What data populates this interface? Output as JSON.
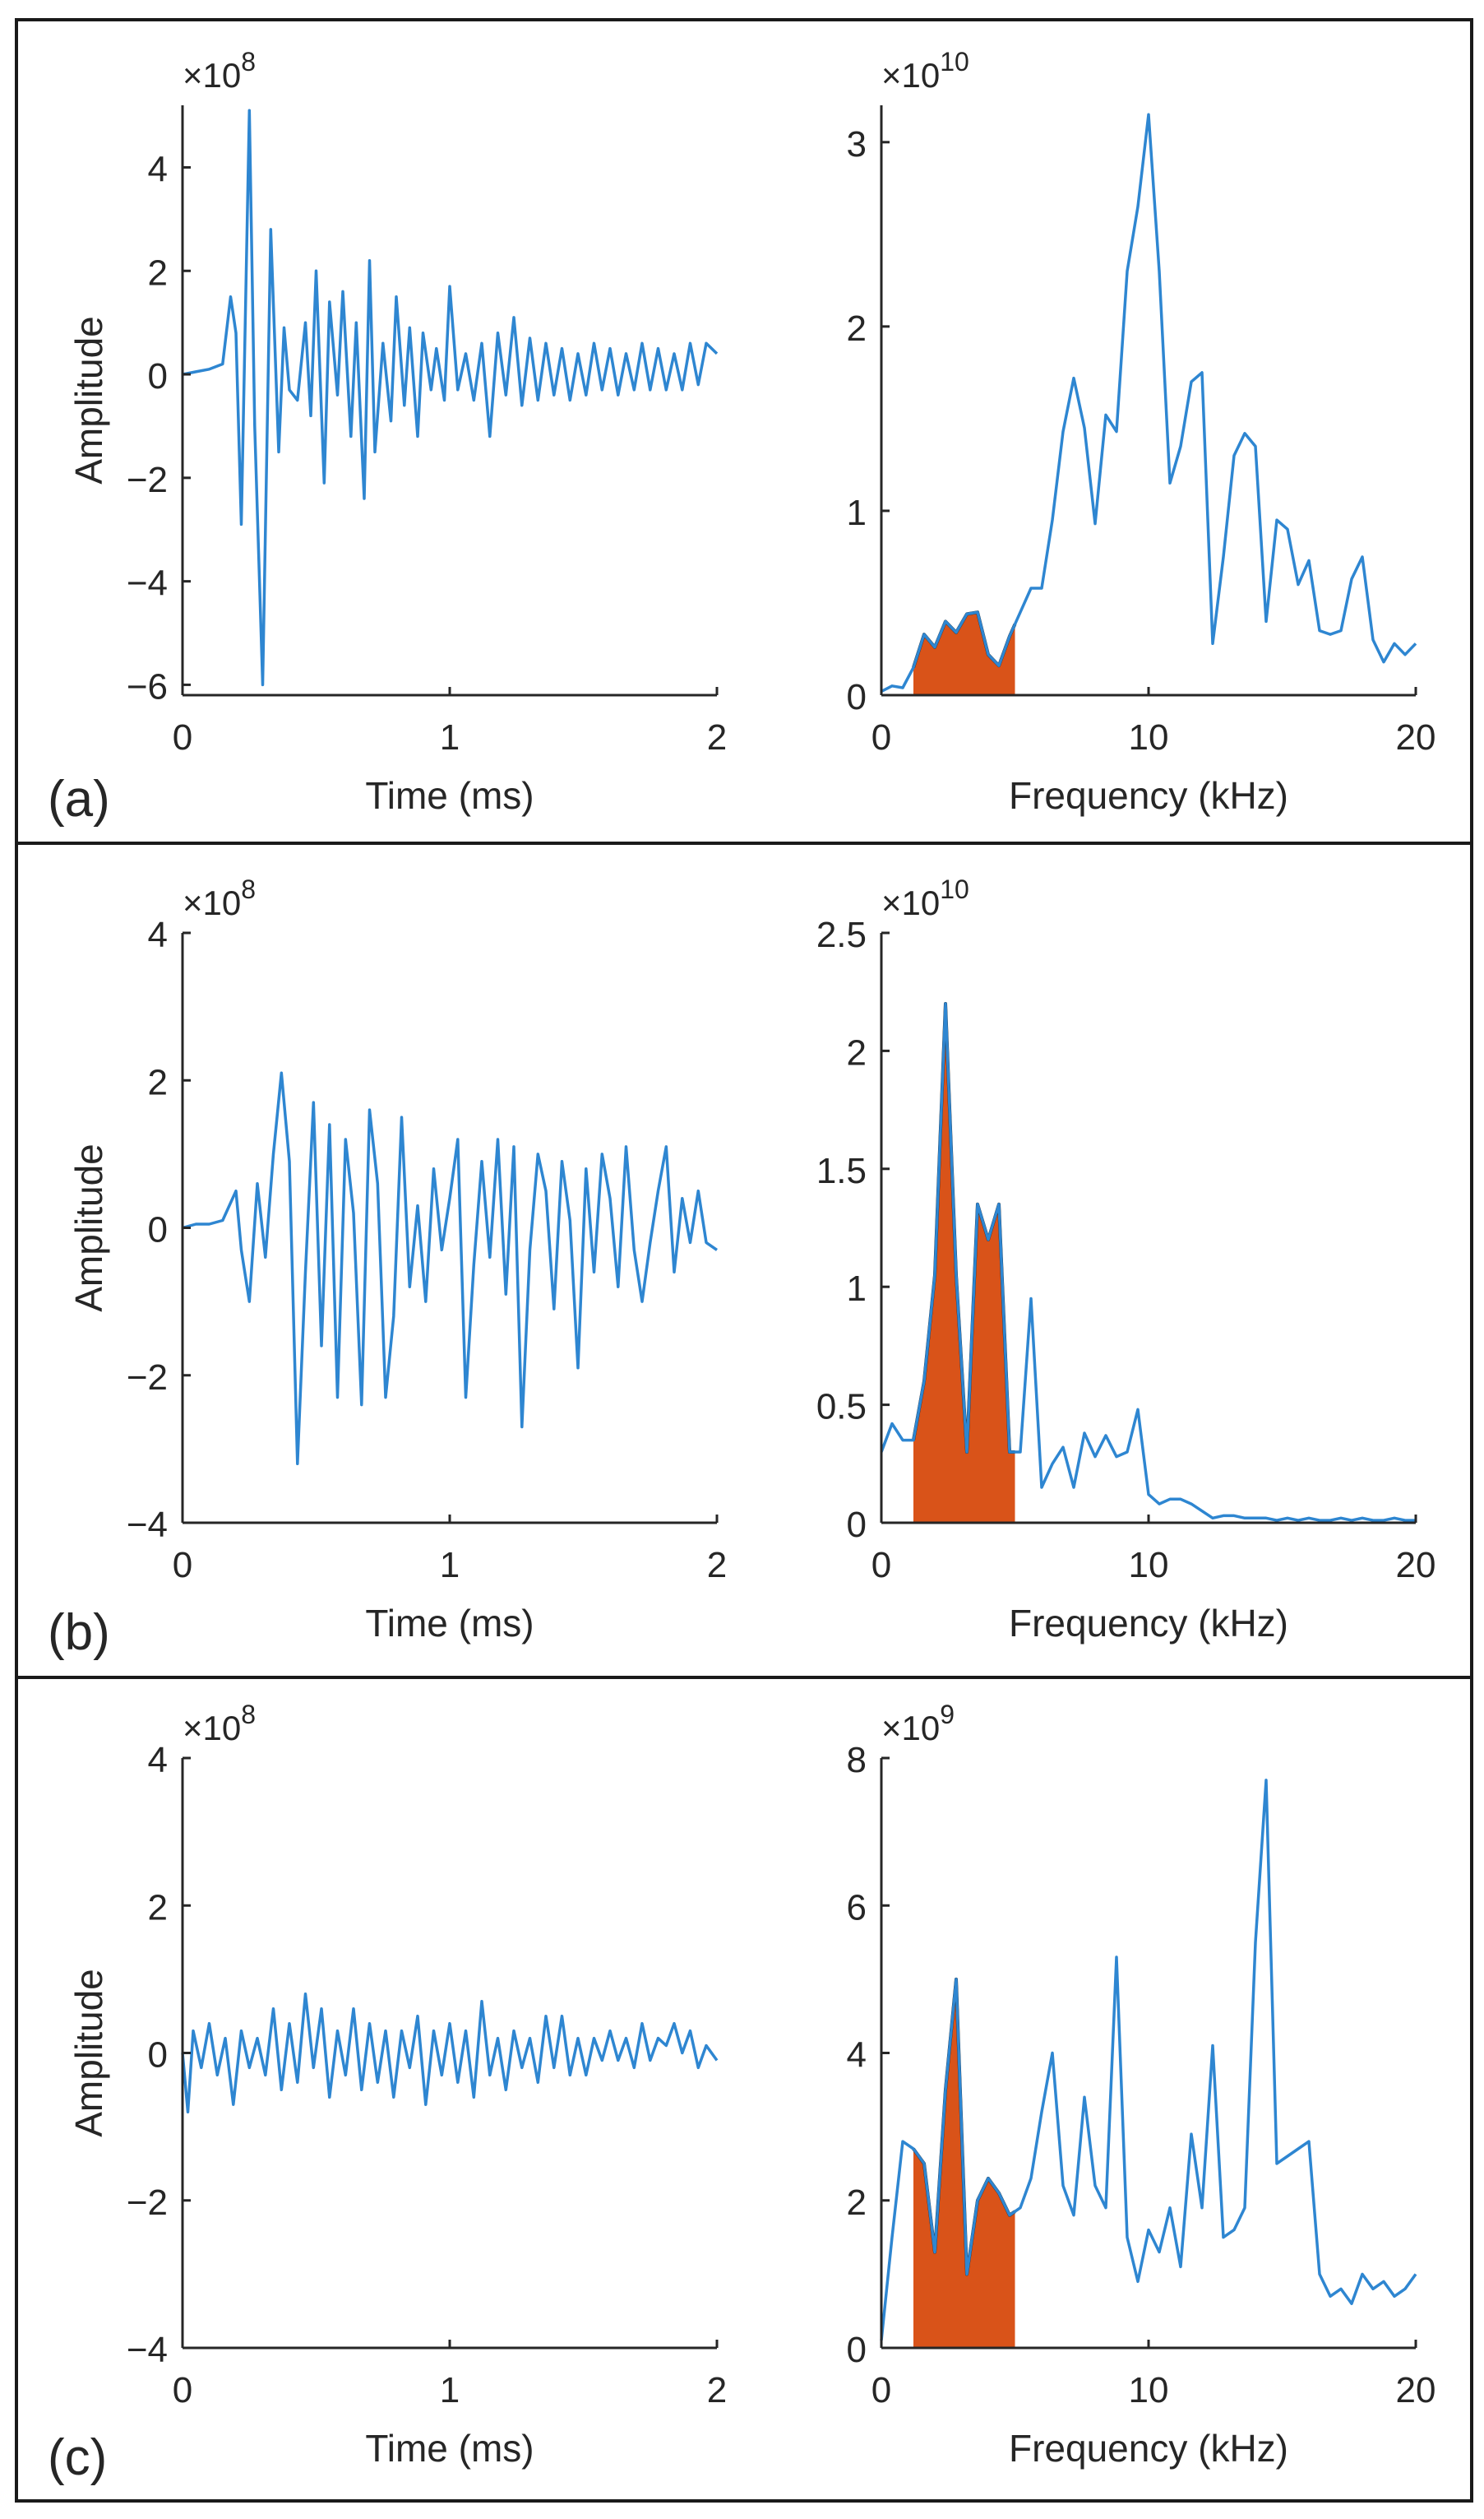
{
  "colors": {
    "signal": "#2e86d1",
    "fill": "#d95319",
    "fill_edge": "#1a1a1a",
    "axis": "#262626",
    "frame": "#1a1a1a"
  },
  "chart_data": [
    {
      "id": "a-time",
      "panel": "(a)",
      "type": "line",
      "xlabel": "Time (ms)",
      "ylabel": "Amplitude",
      "exponent": "×10^8",
      "xlim": [
        0,
        2
      ],
      "ylim": [
        -6.2,
        5.2
      ],
      "xticks": [
        0,
        1,
        2
      ],
      "yticks": [
        -6,
        -4,
        -2,
        0,
        2,
        4
      ],
      "series": [
        {
          "name": "signal",
          "x": [
            0,
            0.05,
            0.1,
            0.15,
            0.18,
            0.2,
            0.22,
            0.25,
            0.27,
            0.3,
            0.33,
            0.36,
            0.38,
            0.4,
            0.43,
            0.46,
            0.48,
            0.5,
            0.53,
            0.55,
            0.58,
            0.6,
            0.63,
            0.65,
            0.68,
            0.7,
            0.72,
            0.75,
            0.78,
            0.8,
            0.83,
            0.85,
            0.88,
            0.9,
            0.93,
            0.95,
            0.98,
            1.0,
            1.03,
            1.06,
            1.09,
            1.12,
            1.15,
            1.18,
            1.21,
            1.24,
            1.27,
            1.3,
            1.33,
            1.36,
            1.39,
            1.42,
            1.45,
            1.48,
            1.51,
            1.54,
            1.57,
            1.6,
            1.63,
            1.66,
            1.69,
            1.72,
            1.75,
            1.78,
            1.81,
            1.84,
            1.87,
            1.9,
            1.93,
            1.96,
            2.0
          ],
          "y": [
            0.0,
            0.05,
            0.1,
            0.2,
            1.5,
            0.8,
            -2.9,
            5.1,
            -1.0,
            -6.0,
            2.8,
            -1.5,
            0.9,
            -0.3,
            -0.5,
            1.0,
            -0.8,
            2.0,
            -2.1,
            1.4,
            -0.4,
            1.6,
            -1.2,
            1.0,
            -2.4,
            2.2,
            -1.5,
            0.6,
            -0.9,
            1.5,
            -0.6,
            0.9,
            -1.2,
            0.8,
            -0.3,
            0.5,
            -0.5,
            1.7,
            -0.3,
            0.4,
            -0.5,
            0.6,
            -1.2,
            0.8,
            -0.4,
            1.1,
            -0.6,
            0.7,
            -0.5,
            0.6,
            -0.4,
            0.5,
            -0.5,
            0.4,
            -0.4,
            0.6,
            -0.3,
            0.5,
            -0.4,
            0.4,
            -0.3,
            0.6,
            -0.3,
            0.5,
            -0.3,
            0.4,
            -0.3,
            0.6,
            -0.2,
            0.6,
            0.4
          ]
        }
      ]
    },
    {
      "id": "a-freq",
      "panel": "(a)",
      "type": "area",
      "xlabel": "Frequency (kHz)",
      "ylabel": "",
      "exponent": "×10^10",
      "xlim": [
        0,
        20
      ],
      "ylim": [
        0,
        3.2
      ],
      "xticks": [
        0,
        10,
        20
      ],
      "yticks": [
        0,
        1,
        2,
        3
      ],
      "highlight": [
        1.2,
        5
      ],
      "series": [
        {
          "name": "spectrum",
          "x": [
            0,
            0.4,
            0.8,
            1.2,
            1.6,
            2.0,
            2.4,
            2.8,
            3.2,
            3.6,
            4.0,
            4.4,
            4.8,
            5.2,
            5.6,
            6.0,
            6.4,
            6.8,
            7.2,
            7.6,
            8.0,
            8.4,
            8.8,
            9.2,
            9.6,
            10.0,
            10.4,
            10.8,
            11.2,
            11.6,
            12.0,
            12.4,
            12.8,
            13.2,
            13.6,
            14.0,
            14.4,
            14.8,
            15.2,
            15.6,
            16.0,
            16.4,
            16.8,
            17.2,
            17.6,
            18.0,
            18.4,
            18.8,
            19.2,
            19.6,
            20.0
          ],
          "y": [
            0.02,
            0.05,
            0.04,
            0.15,
            0.33,
            0.26,
            0.4,
            0.34,
            0.44,
            0.45,
            0.22,
            0.16,
            0.32,
            0.45,
            0.58,
            0.58,
            0.95,
            1.43,
            1.72,
            1.45,
            0.93,
            1.52,
            1.43,
            2.3,
            2.65,
            3.15,
            2.3,
            1.15,
            1.35,
            1.7,
            1.75,
            0.28,
            0.75,
            1.3,
            1.42,
            1.35,
            0.4,
            0.95,
            0.9,
            0.6,
            0.73,
            0.35,
            0.33,
            0.35,
            0.63,
            0.75,
            0.3,
            0.18,
            0.28,
            0.22,
            0.28
          ]
        }
      ]
    },
    {
      "id": "b-time",
      "panel": "(b)",
      "type": "line",
      "xlabel": "Time (ms)",
      "ylabel": "Amplitude",
      "exponent": "×10^8",
      "xlim": [
        0,
        2
      ],
      "ylim": [
        -4,
        4
      ],
      "xticks": [
        0,
        1,
        2
      ],
      "yticks": [
        -4,
        -2,
        0,
        2,
        4
      ],
      "series": [
        {
          "name": "signal",
          "x": [
            0,
            0.05,
            0.1,
            0.15,
            0.2,
            0.22,
            0.25,
            0.28,
            0.31,
            0.34,
            0.37,
            0.4,
            0.43,
            0.46,
            0.49,
            0.52,
            0.55,
            0.58,
            0.61,
            0.64,
            0.67,
            0.7,
            0.73,
            0.76,
            0.79,
            0.82,
            0.85,
            0.88,
            0.91,
            0.94,
            0.97,
            1.0,
            1.03,
            1.06,
            1.09,
            1.12,
            1.15,
            1.18,
            1.21,
            1.24,
            1.27,
            1.3,
            1.33,
            1.36,
            1.39,
            1.42,
            1.45,
            1.48,
            1.51,
            1.54,
            1.57,
            1.6,
            1.63,
            1.66,
            1.69,
            1.72,
            1.75,
            1.78,
            1.81,
            1.84,
            1.87,
            1.9,
            1.93,
            1.96,
            2.0
          ],
          "y": [
            0.0,
            0.05,
            0.05,
            0.1,
            0.5,
            -0.3,
            -1.0,
            0.6,
            -0.4,
            1.0,
            2.1,
            0.9,
            -3.2,
            -0.6,
            1.7,
            -1.6,
            1.4,
            -2.3,
            1.2,
            0.2,
            -2.4,
            1.6,
            0.6,
            -2.3,
            -1.2,
            1.5,
            -0.8,
            0.3,
            -1.0,
            0.8,
            -0.3,
            0.4,
            1.2,
            -2.3,
            -0.5,
            0.9,
            -0.4,
            1.2,
            -0.9,
            1.1,
            -2.7,
            -0.3,
            1.0,
            0.5,
            -1.1,
            0.9,
            0.1,
            -1.9,
            0.8,
            -0.6,
            1.0,
            0.4,
            -0.8,
            1.1,
            -0.3,
            -1.0,
            -0.2,
            0.5,
            1.1,
            -0.6,
            0.4,
            -0.2,
            0.5,
            -0.2,
            -0.3
          ]
        }
      ]
    },
    {
      "id": "b-freq",
      "panel": "(b)",
      "type": "area",
      "xlabel": "Frequency (kHz)",
      "ylabel": "",
      "exponent": "×10^10",
      "xlim": [
        0,
        20
      ],
      "ylim": [
        0,
        2.5
      ],
      "xticks": [
        0,
        10,
        20
      ],
      "yticks": [
        0,
        0.5,
        1,
        1.5,
        2,
        2.5
      ],
      "highlight": [
        1.2,
        5
      ],
      "series": [
        {
          "name": "spectrum",
          "x": [
            0,
            0.4,
            0.8,
            1.2,
            1.6,
            2.0,
            2.4,
            2.8,
            3.2,
            3.6,
            4.0,
            4.4,
            4.8,
            5.2,
            5.6,
            6.0,
            6.4,
            6.8,
            7.2,
            7.6,
            8.0,
            8.4,
            8.8,
            9.2,
            9.6,
            10.0,
            10.4,
            10.8,
            11.2,
            11.6,
            12.0,
            12.4,
            12.8,
            13.2,
            13.6,
            14.0,
            14.4,
            14.8,
            15.2,
            15.6,
            16.0,
            16.4,
            16.8,
            17.2,
            17.6,
            18.0,
            18.4,
            18.8,
            19.2,
            19.6,
            20.0
          ],
          "y": [
            0.3,
            0.42,
            0.35,
            0.35,
            0.6,
            1.05,
            2.2,
            1.05,
            0.3,
            1.35,
            1.2,
            1.35,
            0.3,
            0.3,
            0.95,
            0.15,
            0.25,
            0.32,
            0.15,
            0.38,
            0.28,
            0.37,
            0.28,
            0.3,
            0.48,
            0.12,
            0.08,
            0.1,
            0.1,
            0.08,
            0.05,
            0.02,
            0.03,
            0.03,
            0.02,
            0.02,
            0.02,
            0.01,
            0.02,
            0.01,
            0.02,
            0.01,
            0.01,
            0.02,
            0.01,
            0.02,
            0.01,
            0.01,
            0.02,
            0.01,
            0.01
          ]
        }
      ]
    },
    {
      "id": "c-time",
      "panel": "(c)",
      "type": "line",
      "xlabel": "Time (ms)",
      "ylabel": "Amplitude",
      "exponent": "×10^8",
      "xlim": [
        0,
        2
      ],
      "ylim": [
        -4,
        4
      ],
      "xticks": [
        0,
        1,
        2
      ],
      "yticks": [
        -4,
        -2,
        0,
        2,
        4
      ],
      "series": [
        {
          "name": "signal",
          "x": [
            0,
            0.02,
            0.04,
            0.07,
            0.1,
            0.13,
            0.16,
            0.19,
            0.22,
            0.25,
            0.28,
            0.31,
            0.34,
            0.37,
            0.4,
            0.43,
            0.46,
            0.49,
            0.52,
            0.55,
            0.58,
            0.61,
            0.64,
            0.67,
            0.7,
            0.73,
            0.76,
            0.79,
            0.82,
            0.85,
            0.88,
            0.91,
            0.94,
            0.97,
            1.0,
            1.03,
            1.06,
            1.09,
            1.12,
            1.15,
            1.18,
            1.21,
            1.24,
            1.27,
            1.3,
            1.33,
            1.36,
            1.39,
            1.42,
            1.45,
            1.48,
            1.51,
            1.54,
            1.57,
            1.6,
            1.63,
            1.66,
            1.69,
            1.72,
            1.75,
            1.78,
            1.81,
            1.84,
            1.87,
            1.9,
            1.93,
            1.96,
            2.0
          ],
          "y": [
            0.0,
            -0.8,
            0.3,
            -0.2,
            0.4,
            -0.3,
            0.2,
            -0.7,
            0.3,
            -0.2,
            0.2,
            -0.3,
            0.6,
            -0.5,
            0.4,
            -0.4,
            0.8,
            -0.2,
            0.6,
            -0.6,
            0.3,
            -0.3,
            0.6,
            -0.5,
            0.4,
            -0.4,
            0.3,
            -0.6,
            0.3,
            -0.2,
            0.5,
            -0.7,
            0.3,
            -0.3,
            0.4,
            -0.4,
            0.3,
            -0.6,
            0.7,
            -0.3,
            0.2,
            -0.5,
            0.3,
            -0.2,
            0.2,
            -0.4,
            0.5,
            -0.2,
            0.5,
            -0.3,
            0.2,
            -0.3,
            0.2,
            -0.1,
            0.3,
            -0.1,
            0.2,
            -0.2,
            0.4,
            -0.1,
            0.2,
            0.1,
            0.4,
            0.0,
            0.3,
            -0.2,
            0.1,
            -0.1
          ]
        }
      ]
    },
    {
      "id": "c-freq",
      "panel": "(c)",
      "type": "area",
      "xlabel": "Frequency (kHz)",
      "ylabel": "",
      "exponent": "×10^9",
      "xlim": [
        0,
        20
      ],
      "ylim": [
        0,
        8
      ],
      "xticks": [
        0,
        10,
        20
      ],
      "yticks": [
        0,
        2,
        4,
        6,
        8
      ],
      "highlight": [
        1.2,
        5
      ],
      "series": [
        {
          "name": "spectrum",
          "x": [
            0,
            0.4,
            0.8,
            1.2,
            1.6,
            2.0,
            2.4,
            2.8,
            3.2,
            3.6,
            4.0,
            4.4,
            4.8,
            5.2,
            5.6,
            6.0,
            6.4,
            6.8,
            7.2,
            7.6,
            8.0,
            8.4,
            8.8,
            9.2,
            9.6,
            10.0,
            10.4,
            10.8,
            11.2,
            11.6,
            12.0,
            12.4,
            12.8,
            13.2,
            13.6,
            14.0,
            14.4,
            14.8,
            15.2,
            15.6,
            16.0,
            16.4,
            16.8,
            17.2,
            17.6,
            18.0,
            18.4,
            18.8,
            19.2,
            19.6,
            20.0
          ],
          "y": [
            0.1,
            1.5,
            2.8,
            2.7,
            2.5,
            1.3,
            3.5,
            5.0,
            1.0,
            2.0,
            2.3,
            2.1,
            1.8,
            1.9,
            2.3,
            3.2,
            4.0,
            2.2,
            1.8,
            3.4,
            2.2,
            1.9,
            5.3,
            1.5,
            0.9,
            1.6,
            1.3,
            1.9,
            1.1,
            2.9,
            1.9,
            4.1,
            1.5,
            1.6,
            1.9,
            5.5,
            7.7,
            2.5,
            2.6,
            2.7,
            2.8,
            1.0,
            0.7,
            0.8,
            0.6,
            1.0,
            0.8,
            0.9,
            0.7,
            0.8,
            1.0
          ]
        }
      ]
    }
  ],
  "panels": {
    "a": {
      "label": "(a)"
    },
    "b": {
      "label": "(b)"
    },
    "c": {
      "label": "(c)"
    }
  }
}
